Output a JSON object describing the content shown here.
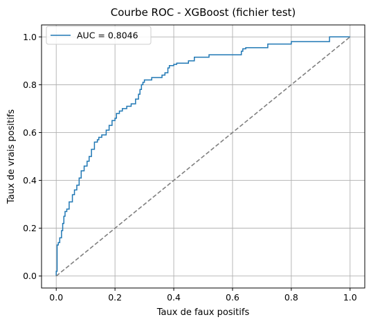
{
  "chart_data": {
    "type": "line",
    "title": "Courbe ROC - XGBoost (fichier test)",
    "xlabel": "Taux de faux positifs",
    "ylabel": "Taux de vrais positifs",
    "xlim": [
      -0.05,
      1.05
    ],
    "ylim": [
      -0.05,
      1.05
    ],
    "xticks": [
      "0.0",
      "0.2",
      "0.4",
      "0.6",
      "0.8",
      "1.0"
    ],
    "yticks": [
      "0.0",
      "0.2",
      "0.4",
      "0.6",
      "0.8",
      "1.0"
    ],
    "grid": true,
    "legend_position": "top-left",
    "series": [
      {
        "name": "AUC = 0.8046",
        "color": "#1f77b4",
        "style": "solid",
        "x": [
          0,
          0,
          0.003,
          0.003,
          0.007,
          0.007,
          0.012,
          0.012,
          0.018,
          0.018,
          0.022,
          0.022,
          0.026,
          0.026,
          0.03,
          0.03,
          0.036,
          0.036,
          0.044,
          0.044,
          0.055,
          0.055,
          0.062,
          0.062,
          0.07,
          0.07,
          0.078,
          0.078,
          0.085,
          0.085,
          0.095,
          0.095,
          0.105,
          0.105,
          0.112,
          0.112,
          0.12,
          0.12,
          0.13,
          0.13,
          0.14,
          0.14,
          0.145,
          0.145,
          0.155,
          0.155,
          0.17,
          0.17,
          0.18,
          0.18,
          0.19,
          0.19,
          0.2,
          0.2,
          0.205,
          0.205,
          0.215,
          0.215,
          0.225,
          0.225,
          0.24,
          0.24,
          0.255,
          0.255,
          0.27,
          0.27,
          0.28,
          0.28,
          0.285,
          0.285,
          0.29,
          0.29,
          0.295,
          0.295,
          0.3,
          0.3,
          0.31,
          0.31,
          0.325,
          0.325,
          0.36,
          0.36,
          0.37,
          0.37,
          0.38,
          0.38,
          0.385,
          0.385,
          0.4,
          0.4,
          0.41,
          0.41,
          0.45,
          0.45,
          0.47,
          0.47,
          0.52,
          0.52,
          0.63,
          0.63,
          0.635,
          0.635,
          0.645,
          0.645,
          0.72,
          0.72,
          0.8,
          0.8,
          0.93,
          0.93,
          1.0
        ],
        "y": [
          0,
          0.02,
          0.02,
          0.13,
          0.13,
          0.14,
          0.14,
          0.16,
          0.16,
          0.19,
          0.19,
          0.22,
          0.22,
          0.25,
          0.25,
          0.27,
          0.27,
          0.28,
          0.28,
          0.31,
          0.31,
          0.34,
          0.34,
          0.36,
          0.36,
          0.38,
          0.38,
          0.41,
          0.41,
          0.44,
          0.44,
          0.46,
          0.46,
          0.48,
          0.48,
          0.5,
          0.5,
          0.53,
          0.53,
          0.56,
          0.56,
          0.57,
          0.57,
          0.58,
          0.58,
          0.59,
          0.59,
          0.61,
          0.61,
          0.63,
          0.63,
          0.65,
          0.65,
          0.66,
          0.66,
          0.68,
          0.68,
          0.69,
          0.69,
          0.7,
          0.7,
          0.71,
          0.71,
          0.72,
          0.72,
          0.74,
          0.74,
          0.76,
          0.76,
          0.78,
          0.78,
          0.8,
          0.8,
          0.81,
          0.81,
          0.82,
          0.82,
          0.82,
          0.82,
          0.83,
          0.83,
          0.84,
          0.84,
          0.85,
          0.85,
          0.87,
          0.87,
          0.88,
          0.88,
          0.885,
          0.885,
          0.89,
          0.89,
          0.9,
          0.9,
          0.915,
          0.915,
          0.925,
          0.925,
          0.94,
          0.94,
          0.95,
          0.95,
          0.955,
          0.955,
          0.97,
          0.97,
          0.98,
          0.98,
          1.0,
          1.0
        ]
      },
      {
        "name": "",
        "color": "#7f7f7f",
        "style": "dashed",
        "x": [
          0,
          1
        ],
        "y": [
          0,
          1
        ]
      }
    ]
  }
}
